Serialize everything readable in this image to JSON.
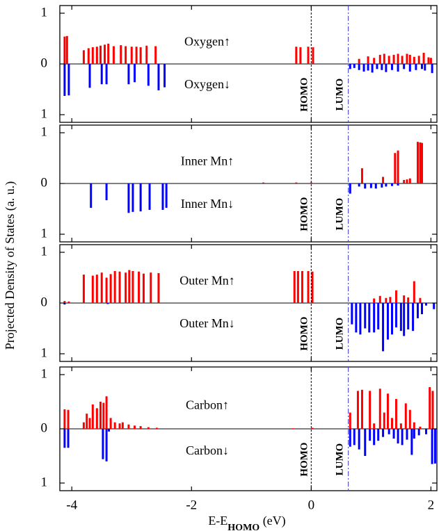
{
  "chart_data": {
    "type": "bar",
    "xlabel_main": "E-E",
    "xlabel_sub": "HOMO",
    "xlabel_unit": " (eV)",
    "ylabel": "Projected Density of States (a. u.)",
    "xlim": [
      -4.2,
      2.1
    ],
    "ylim": [
      -1,
      1
    ],
    "x_ticks": [
      -4,
      -2,
      0,
      2
    ],
    "y_tick_labels": [
      "1",
      "0",
      "1"
    ],
    "homo_x": 0.0,
    "lumo_x": 0.62,
    "homo_label": "HOMO",
    "lumo_label": "LUMO",
    "colors": {
      "up": "#ff0000",
      "down": "#0000ff",
      "homo_line": "#000000",
      "lumo_line": "#3333cc"
    },
    "panels": [
      {
        "up_label": "Oxygen↑",
        "down_label": "Oxygen↓",
        "up": [
          [
            -4.12,
            0.54
          ],
          [
            -4.08,
            0.55
          ],
          [
            -3.8,
            0.27
          ],
          [
            -3.72,
            0.31
          ],
          [
            -3.65,
            0.33
          ],
          [
            -3.58,
            0.34
          ],
          [
            -3.52,
            0.36
          ],
          [
            -3.45,
            0.38
          ],
          [
            -3.39,
            0.4
          ],
          [
            -3.3,
            0.35
          ],
          [
            -3.18,
            0.37
          ],
          [
            -3.1,
            0.35
          ],
          [
            -3.0,
            0.34
          ],
          [
            -2.92,
            0.34
          ],
          [
            -2.85,
            0.33
          ],
          [
            -2.75,
            0.36
          ],
          [
            -2.6,
            0.35
          ],
          [
            -0.25,
            0.34
          ],
          [
            -0.18,
            0.33
          ],
          [
            -0.05,
            0.34
          ],
          [
            0.03,
            0.33
          ],
          [
            0.8,
            0.1
          ],
          [
            0.95,
            0.15
          ],
          [
            1.05,
            0.12
          ],
          [
            1.15,
            0.18
          ],
          [
            1.22,
            0.2
          ],
          [
            1.3,
            0.16
          ],
          [
            1.38,
            0.18
          ],
          [
            1.45,
            0.2
          ],
          [
            1.52,
            0.16
          ],
          [
            1.6,
            0.2
          ],
          [
            1.65,
            0.18
          ],
          [
            1.72,
            0.14
          ],
          [
            1.8,
            0.16
          ],
          [
            1.88,
            0.22
          ],
          [
            1.96,
            0.13
          ],
          [
            2.0,
            0.12
          ]
        ],
        "down": [
          [
            -4.12,
            0.63
          ],
          [
            -4.05,
            0.62
          ],
          [
            -3.7,
            0.47
          ],
          [
            -3.5,
            0.4
          ],
          [
            -3.42,
            0.4
          ],
          [
            -3.05,
            0.4
          ],
          [
            -2.95,
            0.36
          ],
          [
            -2.72,
            0.43
          ],
          [
            -2.55,
            0.52
          ],
          [
            -2.45,
            0.46
          ],
          [
            0.65,
            0.1
          ],
          [
            0.72,
            0.08
          ],
          [
            0.8,
            0.12
          ],
          [
            0.88,
            0.15
          ],
          [
            0.95,
            0.13
          ],
          [
            1.02,
            0.17
          ],
          [
            1.1,
            0.1
          ],
          [
            1.18,
            0.12
          ],
          [
            1.25,
            0.16
          ],
          [
            1.35,
            0.12
          ],
          [
            1.45,
            0.15
          ],
          [
            1.55,
            0.1
          ],
          [
            1.65,
            0.15
          ],
          [
            1.75,
            0.12
          ],
          [
            1.85,
            0.1
          ],
          [
            1.9,
            0.13
          ],
          [
            2.02,
            0.18
          ]
        ]
      },
      {
        "up_label": "Inner Mn↑",
        "down_label": "Inner Mn↓",
        "up": [
          [
            -0.8,
            0.02
          ],
          [
            -0.25,
            0.02
          ],
          [
            0.0,
            0.02
          ],
          [
            0.85,
            0.3
          ],
          [
            1.2,
            0.13
          ],
          [
            1.4,
            0.6
          ],
          [
            1.45,
            0.65
          ],
          [
            1.55,
            0.07
          ],
          [
            1.6,
            0.08
          ],
          [
            1.65,
            0.1
          ],
          [
            1.78,
            0.82
          ],
          [
            1.82,
            0.81
          ],
          [
            1.85,
            0.8
          ]
        ],
        "down": [
          [
            -3.68,
            0.48
          ],
          [
            -3.42,
            0.33
          ],
          [
            -3.05,
            0.58
          ],
          [
            -2.98,
            0.56
          ],
          [
            -2.85,
            0.55
          ],
          [
            -2.7,
            0.52
          ],
          [
            -2.48,
            0.52
          ],
          [
            -2.42,
            0.48
          ],
          [
            0.65,
            0.2
          ],
          [
            0.8,
            0.06
          ],
          [
            0.9,
            0.1
          ],
          [
            1.0,
            0.09
          ],
          [
            1.08,
            0.1
          ],
          [
            1.18,
            0.08
          ],
          [
            1.25,
            0.06
          ],
          [
            1.35,
            0.05
          ],
          [
            1.45,
            0.04
          ]
        ]
      },
      {
        "up_label": "Outer Mn↑",
        "down_label": "Outer Mn↓",
        "up": [
          [
            -4.12,
            0.04
          ],
          [
            -4.05,
            0.03
          ],
          [
            -3.8,
            0.56
          ],
          [
            -3.65,
            0.54
          ],
          [
            -3.58,
            0.56
          ],
          [
            -3.5,
            0.6
          ],
          [
            -3.42,
            0.5
          ],
          [
            -3.35,
            0.57
          ],
          [
            -3.28,
            0.63
          ],
          [
            -3.2,
            0.62
          ],
          [
            -3.1,
            0.6
          ],
          [
            -3.04,
            0.65
          ],
          [
            -2.98,
            0.63
          ],
          [
            -2.88,
            0.62
          ],
          [
            -2.8,
            0.58
          ],
          [
            -2.68,
            0.6
          ],
          [
            -2.55,
            0.59
          ],
          [
            -0.28,
            0.63
          ],
          [
            -0.22,
            0.63
          ],
          [
            -0.15,
            0.63
          ],
          [
            -0.05,
            0.63
          ],
          [
            0.02,
            0.62
          ],
          [
            1.05,
            0.09
          ],
          [
            1.15,
            0.14
          ],
          [
            1.25,
            0.1
          ],
          [
            1.32,
            0.12
          ],
          [
            1.42,
            0.25
          ],
          [
            1.55,
            0.15
          ],
          [
            1.62,
            0.11
          ],
          [
            1.72,
            0.43
          ],
          [
            1.82,
            0.1
          ]
        ],
        "down": [
          [
            -4.12,
            0.03
          ],
          [
            -3.4,
            0.02
          ],
          [
            0.68,
            0.42
          ],
          [
            0.75,
            0.58
          ],
          [
            0.82,
            0.62
          ],
          [
            0.9,
            0.5
          ],
          [
            0.97,
            0.58
          ],
          [
            1.05,
            0.58
          ],
          [
            1.12,
            0.52
          ],
          [
            1.2,
            0.95
          ],
          [
            1.28,
            0.72
          ],
          [
            1.35,
            0.62
          ],
          [
            1.42,
            0.48
          ],
          [
            1.5,
            0.55
          ],
          [
            1.55,
            0.65
          ],
          [
            1.62,
            0.52
          ],
          [
            1.7,
            0.55
          ],
          [
            1.78,
            0.3
          ],
          [
            1.85,
            0.22
          ],
          [
            1.92,
            0.05
          ],
          [
            2.05,
            0.12
          ]
        ]
      },
      {
        "up_label": "Carbon↑",
        "down_label": "Carbon↓",
        "up": [
          [
            -4.12,
            0.36
          ],
          [
            -4.06,
            0.35
          ],
          [
            -3.8,
            0.12
          ],
          [
            -3.75,
            0.28
          ],
          [
            -3.7,
            0.2
          ],
          [
            -3.65,
            0.45
          ],
          [
            -3.58,
            0.38
          ],
          [
            -3.52,
            0.5
          ],
          [
            -3.47,
            0.48
          ],
          [
            -3.42,
            0.6
          ],
          [
            -3.35,
            0.2
          ],
          [
            -3.28,
            0.12
          ],
          [
            -3.2,
            0.1
          ],
          [
            -3.15,
            0.12
          ],
          [
            -3.05,
            0.08
          ],
          [
            -2.95,
            0.06
          ],
          [
            -2.85,
            0.05
          ],
          [
            -2.72,
            0.03
          ],
          [
            -2.58,
            0.02
          ],
          [
            -0.3,
            0.01
          ],
          [
            0.02,
            0.02
          ],
          [
            0.65,
            0.3
          ],
          [
            0.78,
            0.7
          ],
          [
            0.85,
            0.72
          ],
          [
            0.98,
            0.7
          ],
          [
            1.05,
            0.1
          ],
          [
            1.15,
            0.74
          ],
          [
            1.22,
            0.3
          ],
          [
            1.28,
            0.65
          ],
          [
            1.35,
            0.2
          ],
          [
            1.42,
            0.55
          ],
          [
            1.5,
            0.1
          ],
          [
            1.58,
            0.47
          ],
          [
            1.65,
            0.35
          ],
          [
            1.72,
            0.12
          ],
          [
            1.82,
            0.04
          ],
          [
            1.98,
            0.77
          ],
          [
            2.03,
            0.7
          ]
        ],
        "down": [
          [
            -4.12,
            0.35
          ],
          [
            -4.06,
            0.35
          ],
          [
            -3.48,
            0.56
          ],
          [
            -3.42,
            0.6
          ],
          [
            -3.38,
            0.05
          ],
          [
            0.65,
            0.33
          ],
          [
            0.72,
            0.3
          ],
          [
            0.8,
            0.38
          ],
          [
            0.9,
            0.5
          ],
          [
            0.98,
            0.22
          ],
          [
            1.05,
            0.3
          ],
          [
            1.12,
            0.22
          ],
          [
            1.2,
            0.15
          ],
          [
            1.3,
            0.1
          ],
          [
            1.38,
            0.18
          ],
          [
            1.45,
            0.27
          ],
          [
            1.52,
            0.3
          ],
          [
            1.6,
            0.2
          ],
          [
            1.68,
            0.48
          ],
          [
            1.72,
            0.18
          ],
          [
            1.8,
            0.12
          ],
          [
            1.92,
            0.1
          ],
          [
            2.02,
            0.65
          ],
          [
            2.07,
            0.64
          ]
        ]
      }
    ]
  }
}
